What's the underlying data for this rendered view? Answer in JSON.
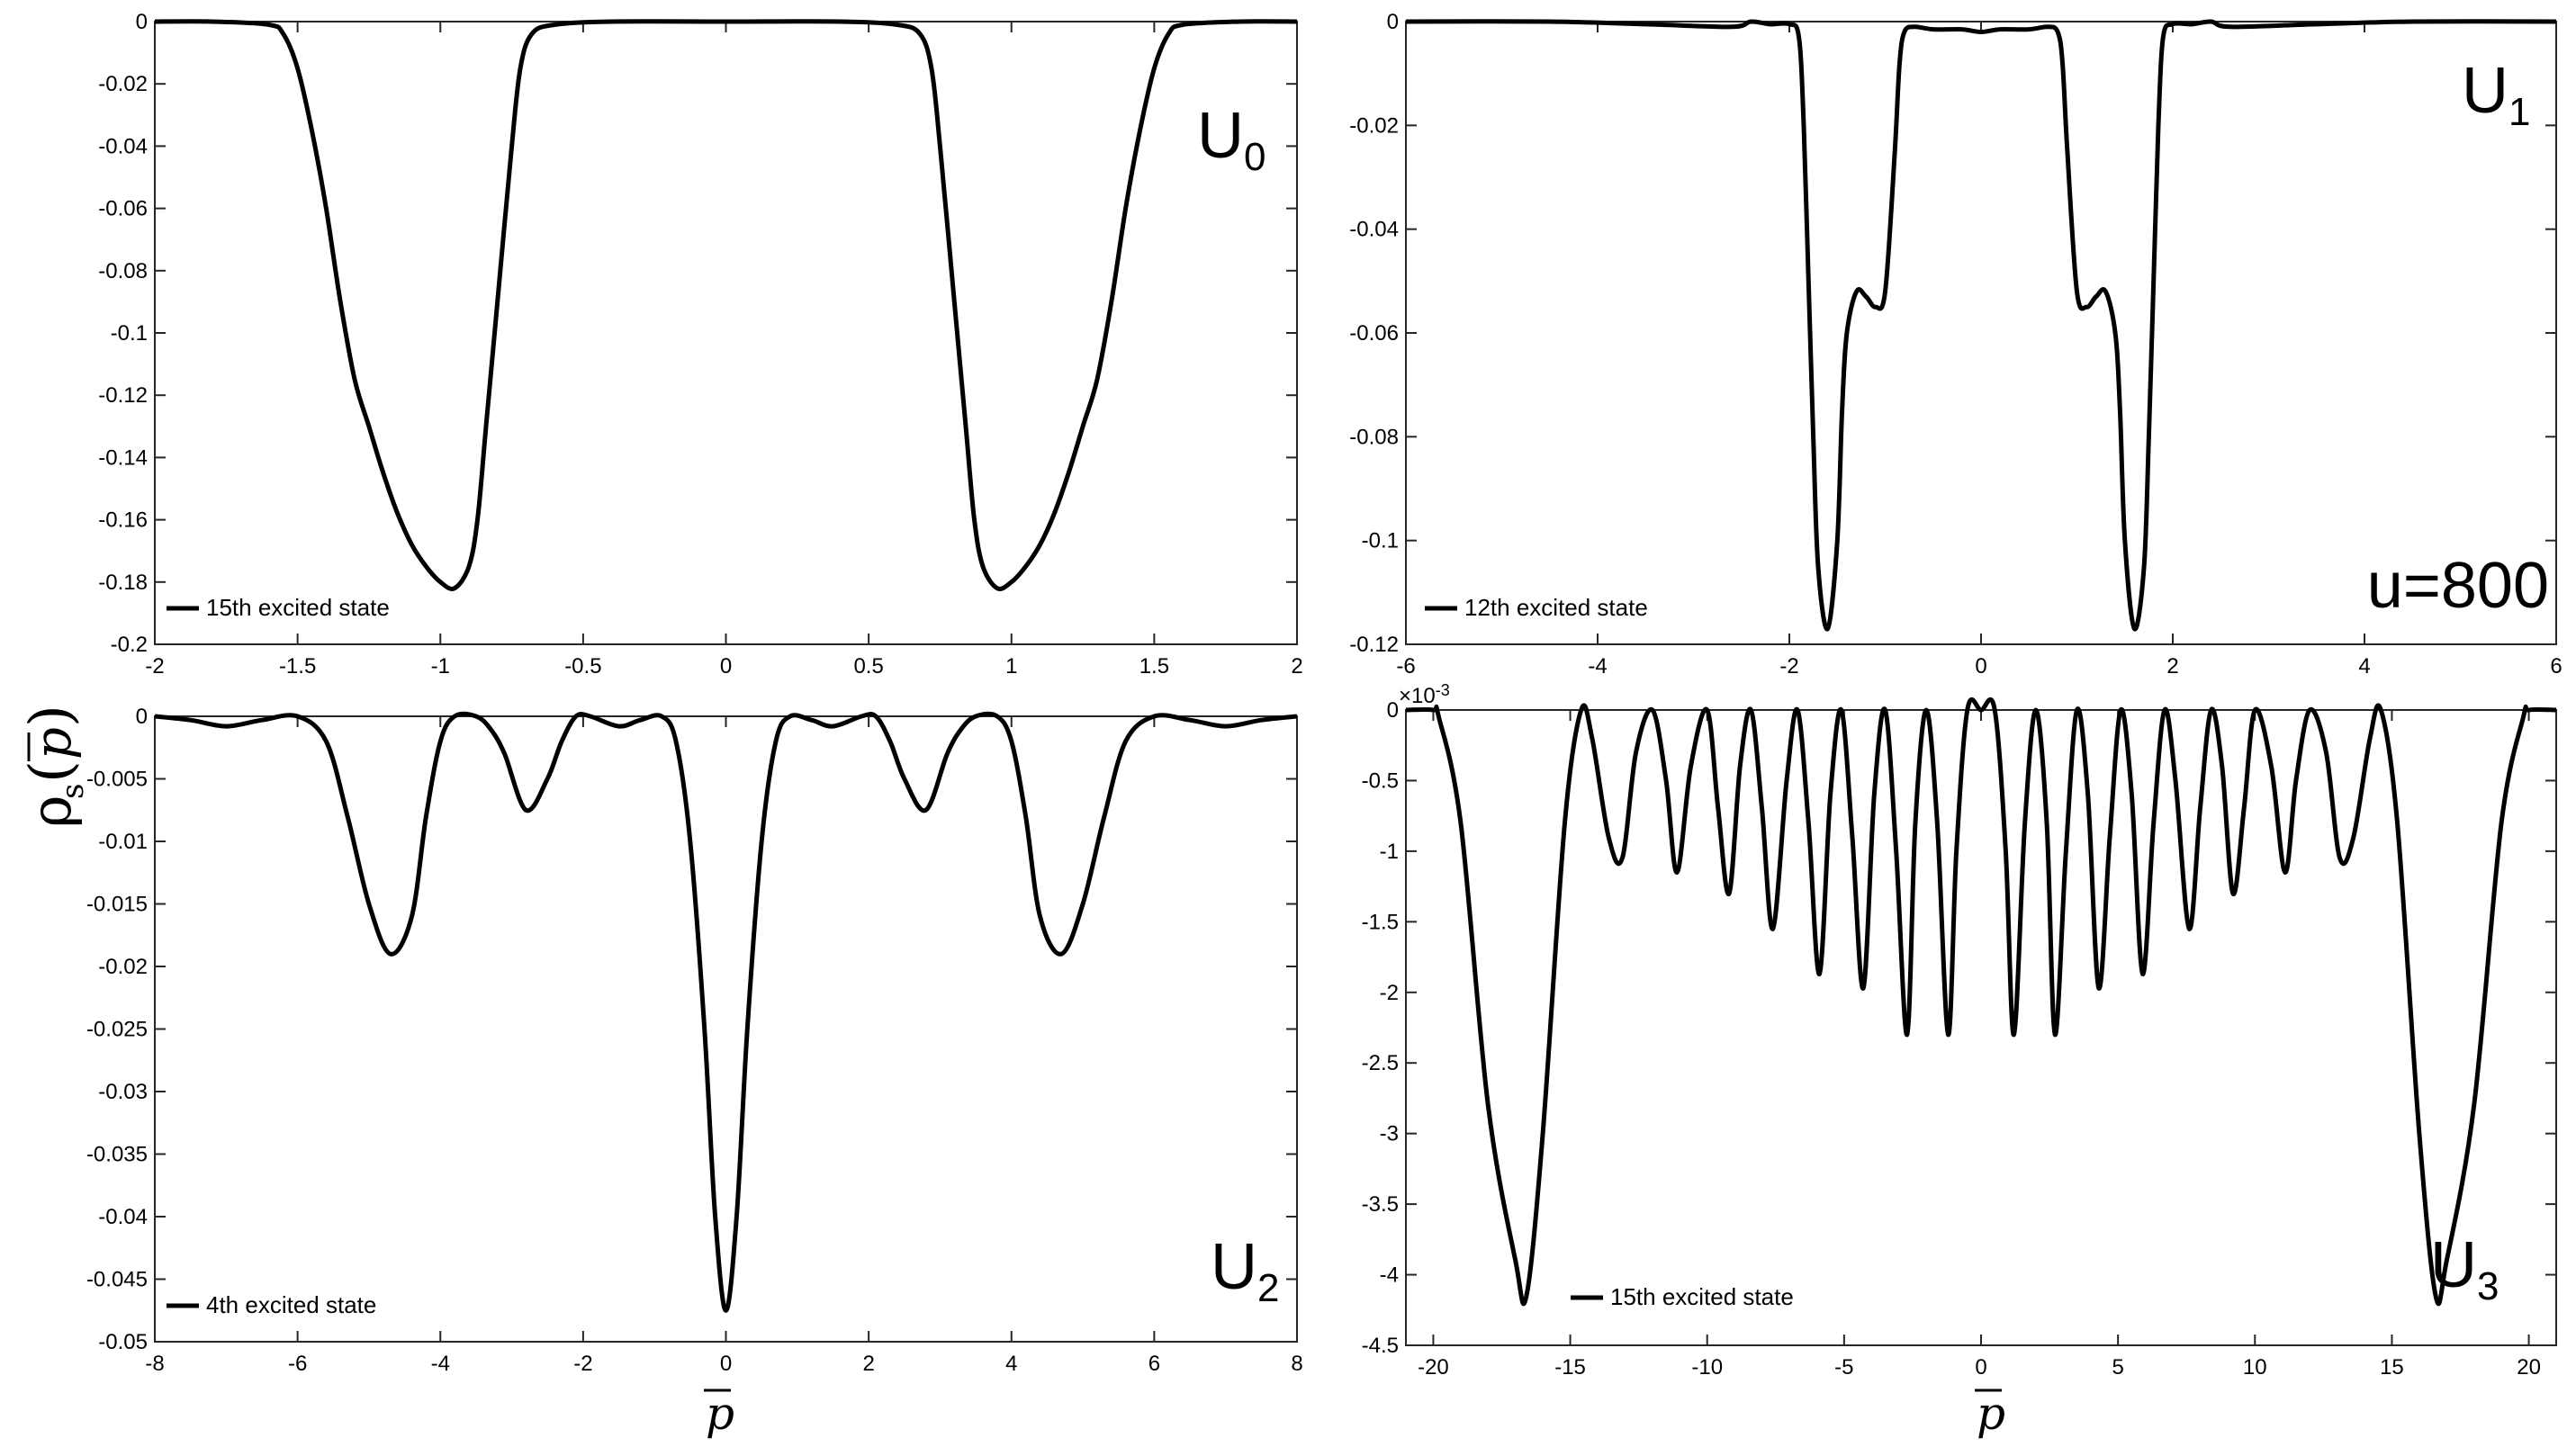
{
  "figure": {
    "ylabel": {
      "main": "ρ",
      "sub": "s",
      "var": "p",
      "paren_open": "(",
      "paren_close": ")"
    },
    "xlabel": "p"
  },
  "chart_data": [
    {
      "type": "line",
      "label": {
        "main": "U",
        "sub": "0"
      },
      "legend": "15th excited state",
      "xlim": [
        -2,
        2
      ],
      "ylim": [
        -0.2,
        0
      ],
      "xticks": [
        -2,
        -1.5,
        -1,
        -0.5,
        0,
        0.5,
        1,
        1.5,
        2
      ],
      "xtick_labels": [
        "-2",
        "-1.5",
        "-1",
        "-0.5",
        "0",
        "0.5",
        "1",
        "1.5",
        "2"
      ],
      "yticks": [
        0,
        -0.02,
        -0.04,
        -0.06,
        -0.08,
        -0.1,
        -0.12,
        -0.14,
        -0.16,
        -0.18,
        -0.2
      ],
      "ytick_labels": [
        "0",
        "-0.02",
        "-0.04",
        "-0.06",
        "-0.08",
        "-0.1",
        "-0.12",
        "-0.14",
        "-0.16",
        "-0.18",
        "-0.2"
      ],
      "series": [
        {
          "x": [
            -2,
            -1.8,
            -1.6,
            -1.55,
            -1.5,
            -1.45,
            -1.4,
            -1.35,
            -1.3,
            -1.25,
            -1.2,
            -1.15,
            -1.1,
            -1.05,
            -1.0,
            -0.95,
            -0.9,
            -0.87,
            -0.84,
            -0.8,
            -0.75,
            -0.72,
            -0.68,
            -0.6,
            -0.4,
            0,
            0.4,
            0.6,
            0.68,
            0.72,
            0.75,
            0.8,
            0.84,
            0.87,
            0.9,
            0.95,
            1.0,
            1.05,
            1.1,
            1.15,
            1.2,
            1.25,
            1.3,
            1.35,
            1.4,
            1.45,
            1.5,
            1.55,
            1.6,
            1.8,
            2
          ],
          "y": [
            0,
            0,
            -0.001,
            -0.004,
            -0.015,
            -0.035,
            -0.06,
            -0.09,
            -0.115,
            -0.13,
            -0.145,
            -0.158,
            -0.168,
            -0.175,
            -0.18,
            -0.182,
            -0.175,
            -0.16,
            -0.13,
            -0.09,
            -0.04,
            -0.015,
            -0.004,
            -0.001,
            0,
            0,
            0,
            -0.001,
            -0.004,
            -0.015,
            -0.04,
            -0.09,
            -0.13,
            -0.16,
            -0.175,
            -0.182,
            -0.18,
            -0.175,
            -0.168,
            -0.158,
            -0.145,
            -0.13,
            -0.115,
            -0.09,
            -0.06,
            -0.035,
            -0.015,
            -0.004,
            -0.001,
            0,
            0
          ]
        }
      ]
    },
    {
      "type": "line",
      "label": {
        "main": "U",
        "sub": "1"
      },
      "annotation": "u=800",
      "legend": "12th excited state",
      "xlim": [
        -6,
        6
      ],
      "ylim": [
        -0.12,
        0
      ],
      "xticks": [
        -6,
        -4,
        -2,
        0,
        2,
        4,
        6
      ],
      "xtick_labels": [
        "-6",
        "-4",
        "-2",
        "0",
        "2",
        "4",
        "6"
      ],
      "yticks": [
        0,
        -0.02,
        -0.04,
        -0.06,
        -0.08,
        -0.1,
        -0.12
      ],
      "ytick_labels": [
        "0",
        "-0.02",
        "-0.04",
        "-0.06",
        "-0.08",
        "-0.1",
        "-0.12"
      ],
      "series": [
        {
          "x": [
            -6,
            -4.5,
            -3.5,
            -2.6,
            -2.4,
            -2.2,
            -2.0,
            -1.9,
            -1.85,
            -1.8,
            -1.75,
            -1.7,
            -1.6,
            -1.5,
            -1.45,
            -1.4,
            -1.3,
            -1.2,
            -1.1,
            -1.0,
            -0.9,
            -0.85,
            -0.8,
            -0.7,
            -0.5,
            -0.2,
            0,
            0.2,
            0.5,
            0.7,
            0.8,
            0.85,
            0.9,
            1.0,
            1.1,
            1.2,
            1.3,
            1.4,
            1.45,
            1.5,
            1.6,
            1.7,
            1.75,
            1.8,
            1.85,
            1.9,
            2.0,
            2.2,
            2.4,
            2.6,
            3.5,
            4.5,
            6
          ],
          "y": [
            0,
            0,
            -0.0005,
            -0.001,
            0,
            -0.0005,
            -0.0005,
            -0.003,
            -0.02,
            -0.05,
            -0.08,
            -0.105,
            -0.117,
            -0.1,
            -0.075,
            -0.06,
            -0.052,
            -0.053,
            -0.055,
            -0.052,
            -0.025,
            -0.008,
            -0.002,
            -0.001,
            -0.0015,
            -0.0015,
            -0.002,
            -0.0015,
            -0.0015,
            -0.001,
            -0.002,
            -0.008,
            -0.025,
            -0.052,
            -0.055,
            -0.053,
            -0.052,
            -0.06,
            -0.075,
            -0.1,
            -0.117,
            -0.105,
            -0.08,
            -0.05,
            -0.02,
            -0.003,
            -0.0005,
            -0.0005,
            0,
            -0.001,
            -0.0005,
            0,
            0
          ]
        }
      ]
    },
    {
      "type": "line",
      "label": {
        "main": "U",
        "sub": "2"
      },
      "legend": "4th excited state",
      "xlim": [
        -8,
        8
      ],
      "ylim": [
        -0.05,
        0
      ],
      "xticks": [
        -8,
        -6,
        -4,
        -2,
        0,
        2,
        4,
        6,
        8
      ],
      "xtick_labels": [
        "-8",
        "-6",
        "-4",
        "-2",
        "0",
        "2",
        "4",
        "6",
        "8"
      ],
      "yticks": [
        0,
        -0.005,
        -0.01,
        -0.015,
        -0.02,
        -0.025,
        -0.03,
        -0.035,
        -0.04,
        -0.045,
        -0.05
      ],
      "ytick_labels": [
        "0",
        "-0.005",
        "-0.01",
        "-0.015",
        "-0.02",
        "-0.025",
        "-0.03",
        "-0.035",
        "-0.04",
        "-0.045",
        "-0.05"
      ],
      "series": [
        {
          "x": [
            -8,
            -7.5,
            -7,
            -6.5,
            -6,
            -5.6,
            -5.3,
            -5,
            -4.7,
            -4.4,
            -4.2,
            -4.0,
            -3.8,
            -3.5,
            -3.3,
            -3.1,
            -2.8,
            -2.5,
            -2.3,
            -2.1,
            -1.9,
            -1.5,
            -1.2,
            -0.9,
            -0.7,
            -0.5,
            -0.3,
            -0.15,
            0,
            0.15,
            0.3,
            0.5,
            0.7,
            0.9,
            1.2,
            1.5,
            1.9,
            2.1,
            2.3,
            2.5,
            2.8,
            3.1,
            3.3,
            3.5,
            3.8,
            4.0,
            4.2,
            4.4,
            4.7,
            5,
            5.3,
            5.6,
            6,
            6.5,
            7,
            7.5,
            8
          ],
          "y": [
            0,
            -0.0003,
            -0.0008,
            -0.0003,
            0,
            -0.002,
            -0.008,
            -0.015,
            -0.019,
            -0.016,
            -0.008,
            -0.002,
            0,
            0,
            -0.001,
            -0.003,
            -0.0075,
            -0.005,
            -0.002,
            0,
            0,
            -0.0008,
            -0.0003,
            0,
            -0.002,
            -0.01,
            -0.025,
            -0.04,
            -0.0475,
            -0.04,
            -0.025,
            -0.01,
            -0.002,
            0,
            -0.0003,
            -0.0008,
            0,
            0,
            -0.002,
            -0.005,
            -0.0075,
            -0.003,
            -0.001,
            0,
            0,
            -0.002,
            -0.008,
            -0.016,
            -0.019,
            -0.015,
            -0.008,
            -0.002,
            0,
            -0.0003,
            -0.0008,
            -0.0003,
            0
          ]
        }
      ]
    },
    {
      "type": "line",
      "label": {
        "main": "U",
        "sub": "3"
      },
      "legend": "15th excited state",
      "exponent": "×10",
      "exponent_power": "-3",
      "xlim": [
        -21,
        21
      ],
      "ylim": [
        -4.5,
        0
      ],
      "xticks": [
        -20,
        -15,
        -10,
        -5,
        0,
        5,
        10,
        15,
        20
      ],
      "xtick_labels": [
        "-20",
        "-15",
        "-10",
        "-5",
        "0",
        "5",
        "10",
        "15",
        "20"
      ],
      "yticks": [
        0,
        -0.5,
        -1,
        -1.5,
        -2,
        -2.5,
        -3,
        -3.5,
        -4,
        -4.5
      ],
      "ytick_labels": [
        "0",
        "-0.5",
        "-1",
        "-1.5",
        "-2",
        "-2.5",
        "-3",
        "-3.5",
        "-4",
        "-4.5"
      ],
      "series": [
        {
          "x": [
            -21,
            -20,
            -19.8,
            -19,
            -18,
            -17,
            -16.6,
            -16,
            -15.2,
            -14.6,
            -14.2,
            -13.6,
            -13.1,
            -12.6,
            -12.0,
            -11.5,
            -11.1,
            -10.6,
            -10.0,
            -9.6,
            -9.2,
            -8.8,
            -8.4,
            -8.0,
            -7.6,
            -7.1,
            -6.7,
            -6.3,
            -5.9,
            -5.5,
            -5.1,
            -4.7,
            -4.3,
            -3.9,
            -3.5,
            -3.1,
            -2.7,
            -2.4,
            -2.0,
            -1.6,
            -1.2,
            -0.9,
            -0.5,
            0,
            0.5,
            0.9,
            1.2,
            1.6,
            2.0,
            2.4,
            2.7,
            3.1,
            3.5,
            3.9,
            4.3,
            4.7,
            5.1,
            5.5,
            5.9,
            6.3,
            6.7,
            7.1,
            7.6,
            8.0,
            8.4,
            8.8,
            9.2,
            9.6,
            10.0,
            10.6,
            11.1,
            11.5,
            12.0,
            12.6,
            13.1,
            13.6,
            14.2,
            14.6,
            15.2,
            16,
            16.6,
            17,
            18,
            19,
            19.8,
            20,
            21
          ],
          "y": [
            0,
            0,
            -0.05,
            -0.8,
            -2.8,
            -3.9,
            -4.15,
            -3.0,
            -0.8,
            0,
            -0.2,
            -0.9,
            -1.05,
            -0.3,
            0,
            -0.5,
            -1.15,
            -0.4,
            0,
            -0.7,
            -1.3,
            -0.4,
            0,
            -0.7,
            -1.55,
            -0.5,
            0,
            -0.8,
            -1.87,
            -0.6,
            0,
            -0.9,
            -1.97,
            -0.6,
            0,
            -1.0,
            -2.3,
            -0.8,
            0,
            -0.8,
            -2.3,
            -1.0,
            0,
            0,
            0,
            -1.0,
            -2.3,
            -0.8,
            0,
            -0.8,
            -2.3,
            -1.0,
            0,
            -0.6,
            -1.97,
            -0.9,
            0,
            -0.6,
            -1.87,
            -0.8,
            0,
            -0.5,
            -1.55,
            -0.7,
            0,
            -0.4,
            -1.3,
            -0.7,
            0,
            -0.4,
            -1.15,
            -0.5,
            0,
            -0.3,
            -1.05,
            -0.9,
            -0.2,
            0,
            -0.8,
            -3.0,
            -4.15,
            -3.9,
            -2.8,
            -0.8,
            -0.05,
            0,
            0
          ]
        }
      ]
    }
  ]
}
